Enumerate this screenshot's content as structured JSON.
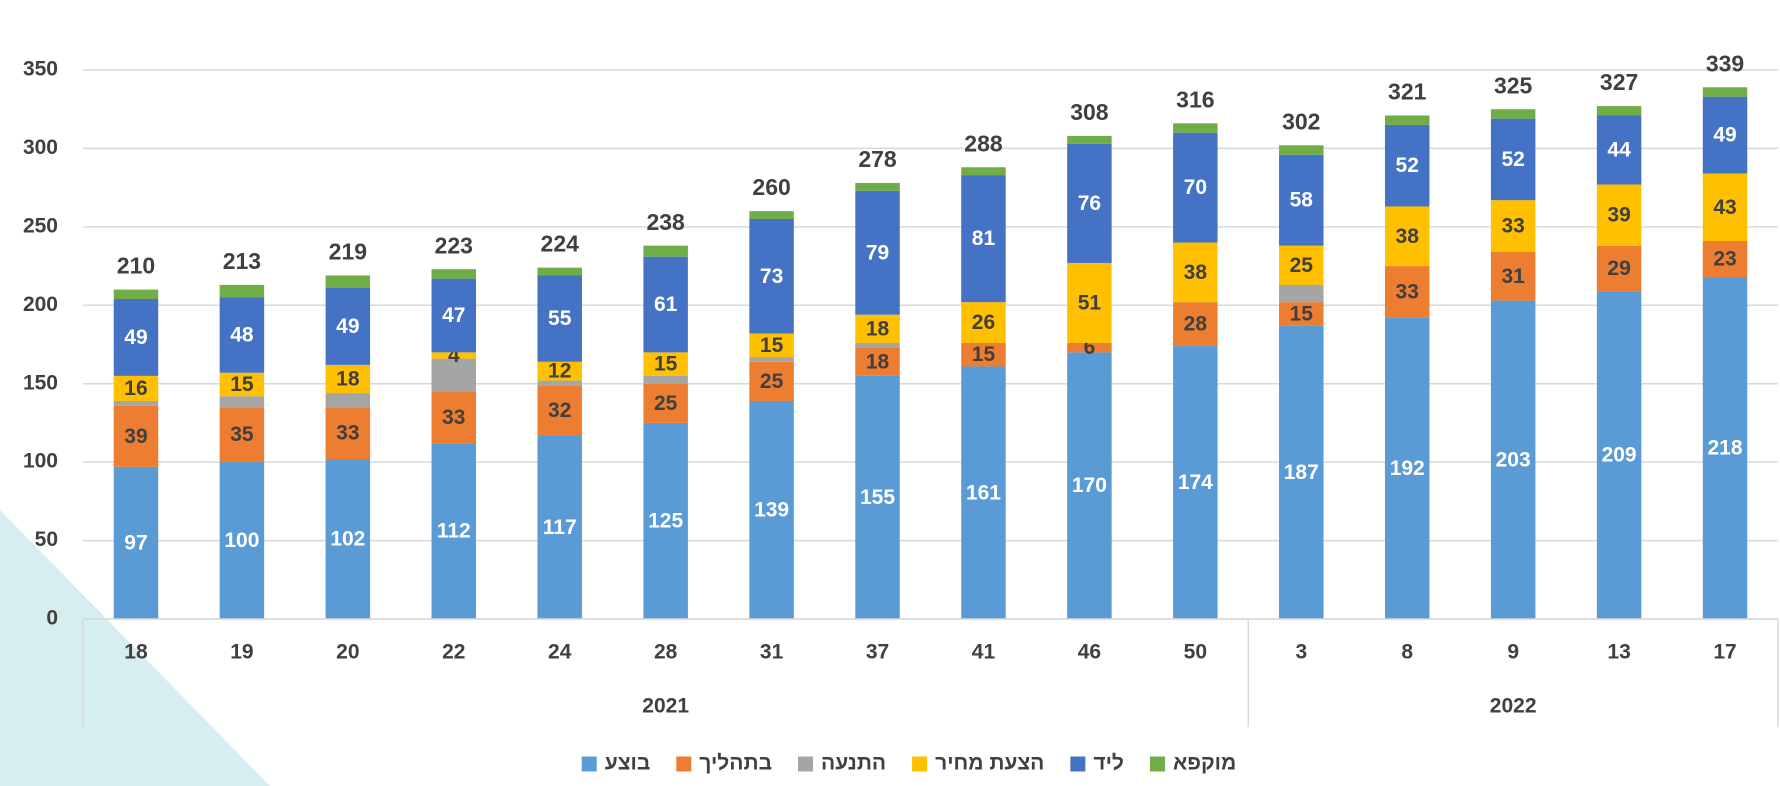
{
  "chart_data": {
    "type": "stacked_bar",
    "categories": [
      "18",
      "19",
      "20",
      "22",
      "24",
      "28",
      "31",
      "37",
      "41",
      "46",
      "50",
      "3",
      "8",
      "9",
      "13",
      "17"
    ],
    "groups": [
      {
        "label": "2021",
        "size": 11
      },
      {
        "label": "2022",
        "size": 5
      }
    ],
    "series": [
      {
        "name": "בוצע",
        "color": "#5b9bd5",
        "label_color": "#ffffff",
        "labels": true,
        "values": [
          97,
          100,
          102,
          112,
          117,
          125,
          139,
          155,
          161,
          170,
          174,
          187,
          192,
          203,
          209,
          218
        ]
      },
      {
        "name": "בתהליך",
        "color": "#ed7d31",
        "label_color": "#404040",
        "labels": true,
        "values": [
          39,
          35,
          33,
          33,
          32,
          25,
          25,
          18,
          15,
          6,
          28,
          15,
          33,
          31,
          29,
          23
        ]
      },
      {
        "name": "התנעה",
        "color": "#a5a5a5",
        "label_color": "#404040",
        "labels": false,
        "values": [
          3,
          7,
          9,
          21,
          3,
          5,
          3,
          3,
          0,
          0,
          0,
          11,
          0,
          0,
          0,
          0
        ]
      },
      {
        "name": "הצעת מחיר",
        "color": "#ffc000",
        "label_color": "#404040",
        "labels": true,
        "values": [
          16,
          15,
          18,
          4,
          12,
          15,
          15,
          18,
          26,
          51,
          38,
          25,
          38,
          33,
          39,
          43
        ]
      },
      {
        "name": "ליד",
        "color": "#4472c4",
        "label_color": "#ffffff",
        "labels": true,
        "values": [
          49,
          48,
          49,
          47,
          55,
          61,
          73,
          79,
          81,
          76,
          70,
          58,
          52,
          52,
          44,
          49
        ]
      },
      {
        "name": "מוקפא",
        "color": "#70ad47",
        "label_color": "#ffffff",
        "labels": false,
        "values": [
          6,
          8,
          8,
          6,
          5,
          7,
          5,
          5,
          5,
          5,
          6,
          6,
          6,
          6,
          6,
          6
        ]
      }
    ],
    "totals": [
      210,
      213,
      219,
      223,
      224,
      238,
      260,
      278,
      288,
      308,
      316,
      302,
      321,
      325,
      327,
      339
    ],
    "ylim": [
      0,
      350
    ],
    "yticks": [
      0,
      50,
      100,
      150,
      200,
      250,
      300,
      350
    ],
    "grid": true,
    "legend": "bottom"
  }
}
